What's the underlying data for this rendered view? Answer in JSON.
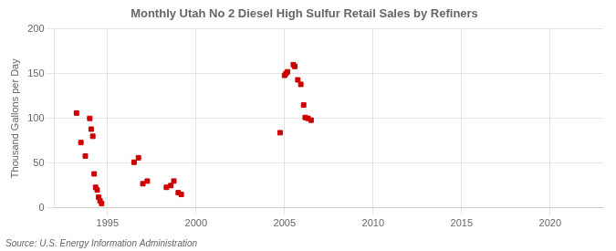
{
  "chart_data": {
    "type": "scatter",
    "title": "Monthly Utah No 2 Diesel High Sulfur Retail Sales by Refiners",
    "ylabel": "Thousand Gallons per Day",
    "source": "Source: U.S. Energy Information Administration",
    "color": "#cc0000",
    "marker": "square",
    "x": [
      1993.25,
      1993.5,
      1993.75,
      1994.0,
      1994.08,
      1994.17,
      1994.25,
      1994.33,
      1994.42,
      1994.5,
      1994.58,
      1994.67,
      1996.5,
      1996.75,
      1997.0,
      1997.25,
      1998.33,
      1998.58,
      1998.75,
      1999.0,
      1999.17,
      2004.75,
      2005.0,
      2005.08,
      2005.17,
      2005.5,
      2005.58,
      2005.75,
      2005.92,
      2006.08,
      2006.17,
      2006.33,
      2006.5
    ],
    "values": [
      106,
      73,
      58,
      100,
      88,
      80,
      38,
      23,
      20,
      12,
      8,
      5,
      51,
      56,
      27,
      30,
      23,
      25,
      30,
      17,
      15,
      84,
      148,
      150,
      152,
      160,
      158,
      143,
      138,
      115,
      101,
      100,
      98
    ],
    "xlim": [
      1992.0,
      2023.0
    ],
    "ylim": [
      0,
      200
    ],
    "xticks": [
      1995,
      2000,
      2005,
      2010,
      2015,
      2020
    ],
    "yticks": [
      0,
      50,
      100,
      150,
      200
    ],
    "grid": true
  }
}
